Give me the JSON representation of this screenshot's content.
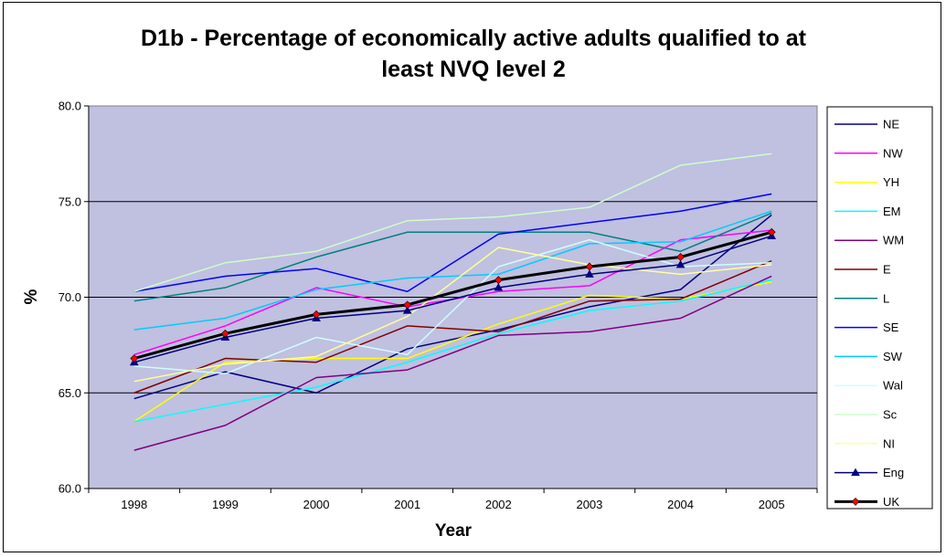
{
  "chart_data": {
    "type": "line",
    "title_line1": "D1b - Percentage of economically active adults qualified to at",
    "title_line2": "least NVQ level 2",
    "xlabel": "Year",
    "ylabel": "%",
    "categories": [
      "1998",
      "1999",
      "2000",
      "2001",
      "2002",
      "2003",
      "2004",
      "2005"
    ],
    "ylim": [
      60,
      80
    ],
    "yticks": [
      "60.0",
      "65.0",
      "70.0",
      "75.0",
      "80.0"
    ],
    "grid": "horizontal",
    "legend_position": "right",
    "plot_background": "#C0C0E0",
    "series": [
      {
        "name": "NE",
        "color": "#000080",
        "values": [
          64.7,
          66.1,
          65.0,
          67.3,
          68.3,
          69.5,
          70.4,
          74.3
        ]
      },
      {
        "name": "NW",
        "color": "#FF00FF",
        "values": [
          67.0,
          68.5,
          70.5,
          69.5,
          70.3,
          70.6,
          73.0,
          73.5
        ]
      },
      {
        "name": "YH",
        "color": "#FFFF00",
        "values": [
          63.5,
          66.6,
          66.8,
          66.8,
          68.6,
          70.1,
          69.9,
          70.8
        ]
      },
      {
        "name": "EM",
        "color": "#00FFFF",
        "values": [
          63.5,
          64.4,
          65.3,
          66.6,
          68.1,
          69.3,
          69.8,
          70.9
        ]
      },
      {
        "name": "WM",
        "color": "#800080",
        "values": [
          62.0,
          63.3,
          65.8,
          66.2,
          68.0,
          68.2,
          68.9,
          71.1
        ]
      },
      {
        "name": "E",
        "color": "#800000",
        "values": [
          65.0,
          66.8,
          66.6,
          68.5,
          68.2,
          69.8,
          69.9,
          71.9
        ]
      },
      {
        "name": "L",
        "color": "#008080",
        "values": [
          69.8,
          70.5,
          72.1,
          73.4,
          73.4,
          73.4,
          72.4,
          74.4
        ]
      },
      {
        "name": "SE",
        "color": "#0000FF",
        "values": [
          70.3,
          71.1,
          71.5,
          70.3,
          73.3,
          73.9,
          74.5,
          75.4
        ]
      },
      {
        "name": "SW",
        "color": "#00CCFF",
        "values": [
          68.3,
          68.9,
          70.4,
          71.0,
          71.2,
          72.8,
          72.9,
          74.5
        ]
      },
      {
        "name": "Wal",
        "color": "#CCFFFF",
        "values": [
          66.4,
          66.0,
          67.9,
          67.0,
          71.6,
          73.0,
          71.6,
          71.8
        ]
      },
      {
        "name": "Sc",
        "color": "#CCFFCC",
        "values": [
          70.3,
          71.8,
          72.4,
          74.0,
          74.2,
          74.7,
          76.9,
          77.5
        ]
      },
      {
        "name": "NI",
        "color": "#FFFF99",
        "values": [
          65.6,
          66.5,
          66.9,
          69.0,
          72.6,
          71.7,
          71.2,
          71.7
        ]
      },
      {
        "name": "Eng",
        "color": "#000080",
        "marker": "triangle",
        "values": [
          66.6,
          67.9,
          68.9,
          69.3,
          70.5,
          71.2,
          71.7,
          73.2
        ]
      },
      {
        "name": "UK",
        "color": "#000000",
        "marker": "diamond",
        "marker_color": "#FF0000",
        "values": [
          66.8,
          68.1,
          69.1,
          69.6,
          70.9,
          71.6,
          72.1,
          73.4
        ]
      }
    ]
  }
}
